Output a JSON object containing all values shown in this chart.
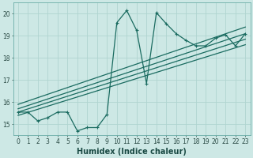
{
  "xlabel": "Humidex (Indice chaleur)",
  "ylabel": "",
  "bg_color": "#cde8e5",
  "grid_color": "#b0d4d0",
  "line_color": "#1a6b60",
  "xlim": [
    -0.5,
    23.5
  ],
  "ylim": [
    14.5,
    20.5
  ],
  "xticks": [
    0,
    1,
    2,
    3,
    4,
    5,
    6,
    7,
    8,
    9,
    10,
    11,
    12,
    13,
    14,
    15,
    16,
    17,
    18,
    19,
    20,
    21,
    22,
    23
  ],
  "yticks": [
    15,
    16,
    17,
    18,
    19,
    20
  ],
  "data_x": [
    0,
    1,
    2,
    3,
    4,
    5,
    6,
    7,
    8,
    9,
    10,
    11,
    12,
    13,
    14,
    15,
    16,
    17,
    18,
    19,
    20,
    21,
    22,
    23
  ],
  "data_y": [
    15.55,
    15.55,
    15.15,
    15.3,
    15.55,
    15.55,
    14.7,
    14.85,
    14.85,
    15.45,
    19.6,
    20.15,
    19.25,
    16.85,
    20.05,
    19.55,
    19.1,
    18.8,
    18.55,
    18.55,
    18.9,
    19.05,
    18.55,
    19.1
  ],
  "reg_lines": [
    {
      "x0": 0,
      "y0": 15.4,
      "x1": 23,
      "y1": 18.6
    },
    {
      "x0": 0,
      "y0": 15.55,
      "x1": 23,
      "y1": 18.85
    },
    {
      "x0": 0,
      "y0": 15.7,
      "x1": 23,
      "y1": 19.1
    },
    {
      "x0": 0,
      "y0": 15.9,
      "x1": 23,
      "y1": 19.4
    }
  ],
  "marker_size": 3.5,
  "line_width": 0.9,
  "tick_fontsize": 5.5,
  "label_fontsize": 7.0
}
